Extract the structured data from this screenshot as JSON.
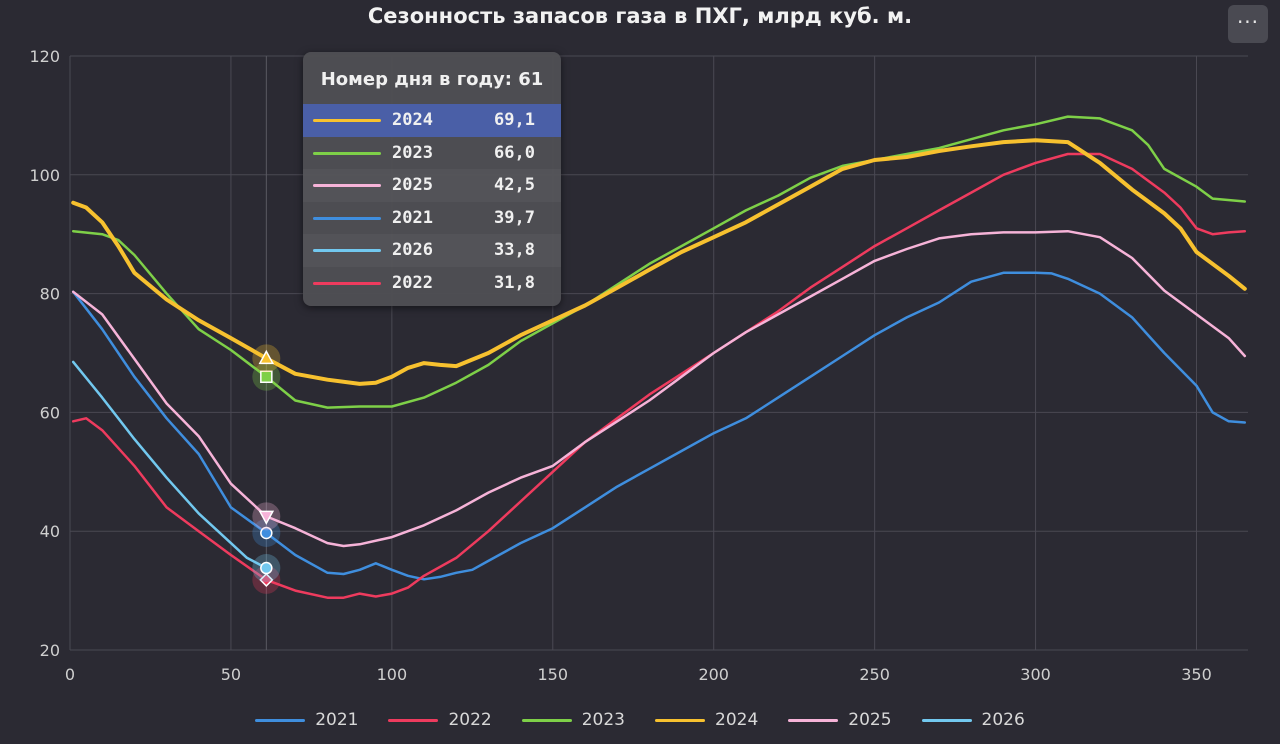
{
  "header": {
    "title": "Сезонность запасов газа в ПХГ, млрд куб. м.",
    "menu_label": "···"
  },
  "tooltip": {
    "title": "Номер дня в году: 61",
    "rows": [
      {
        "year": "2024",
        "value": "69,1",
        "color": "#f7c12f",
        "highlight": true
      },
      {
        "year": "2023",
        "value": "66,0",
        "color": "#7ed048"
      },
      {
        "year": "2025",
        "value": "42,5",
        "color": "#f6b3d8"
      },
      {
        "year": "2021",
        "value": "39,7",
        "color": "#3f8ede"
      },
      {
        "year": "2026",
        "value": "33,8",
        "color": "#72c8ef"
      },
      {
        "year": "2022",
        "value": "31,8",
        "color": "#ee3b5e"
      }
    ]
  },
  "legend": [
    {
      "label": "2021",
      "color": "#3f8ede"
    },
    {
      "label": "2022",
      "color": "#ee3b5e"
    },
    {
      "label": "2023",
      "color": "#7ed048"
    },
    {
      "label": "2024",
      "color": "#f7c12f"
    },
    {
      "label": "2025",
      "color": "#f6b3d8"
    },
    {
      "label": "2026",
      "color": "#72c8ef"
    }
  ],
  "chart_data": {
    "type": "line",
    "title": "Сезонность запасов газа в ПХГ, млрд куб. м.",
    "xlabel": "",
    "ylabel": "",
    "xlim": [
      0,
      366
    ],
    "ylim": [
      20,
      120
    ],
    "x_ticks": [
      0,
      50,
      100,
      150,
      200,
      250,
      300,
      350
    ],
    "y_ticks": [
      20,
      40,
      60,
      80,
      100,
      120
    ],
    "grid": true,
    "legend_position": "bottom",
    "hover_day": 61,
    "series": [
      {
        "name": "2021",
        "color": "#3f8ede",
        "marker": "circle",
        "width": 2.5,
        "points": [
          [
            1,
            80.3
          ],
          [
            10,
            74
          ],
          [
            20,
            66
          ],
          [
            30,
            59
          ],
          [
            40,
            53
          ],
          [
            50,
            44
          ],
          [
            61,
            39.7
          ],
          [
            70,
            36
          ],
          [
            80,
            33
          ],
          [
            85,
            32.8
          ],
          [
            90,
            33.5
          ],
          [
            95,
            34.6
          ],
          [
            100,
            33.5
          ],
          [
            105,
            32.5
          ],
          [
            110,
            31.9
          ],
          [
            115,
            32.3
          ],
          [
            120,
            33
          ],
          [
            125,
            33.5
          ],
          [
            130,
            35
          ],
          [
            140,
            38
          ],
          [
            150,
            40.5
          ],
          [
            160,
            44
          ],
          [
            170,
            47.5
          ],
          [
            180,
            50.5
          ],
          [
            190,
            53.5
          ],
          [
            200,
            56.5
          ],
          [
            210,
            59
          ],
          [
            220,
            62.5
          ],
          [
            230,
            66
          ],
          [
            240,
            69.5
          ],
          [
            250,
            73
          ],
          [
            260,
            76
          ],
          [
            270,
            78.5
          ],
          [
            280,
            82
          ],
          [
            290,
            83.5
          ],
          [
            300,
            83.5
          ],
          [
            305,
            83.4
          ],
          [
            310,
            82.5
          ],
          [
            320,
            80
          ],
          [
            330,
            76
          ],
          [
            340,
            70
          ],
          [
            350,
            64.5
          ],
          [
            355,
            60
          ],
          [
            360,
            58.5
          ],
          [
            365,
            58.3
          ]
        ]
      },
      {
        "name": "2022",
        "color": "#ee3b5e",
        "marker": "diamond",
        "width": 2.5,
        "points": [
          [
            1,
            58.5
          ],
          [
            5,
            59
          ],
          [
            10,
            57
          ],
          [
            20,
            51
          ],
          [
            30,
            44
          ],
          [
            40,
            40
          ],
          [
            50,
            36
          ],
          [
            61,
            31.8
          ],
          [
            70,
            30
          ],
          [
            80,
            28.8
          ],
          [
            85,
            28.8
          ],
          [
            90,
            29.5
          ],
          [
            95,
            29
          ],
          [
            100,
            29.5
          ],
          [
            105,
            30.5
          ],
          [
            110,
            32.5
          ],
          [
            120,
            35.5
          ],
          [
            130,
            40
          ],
          [
            140,
            45
          ],
          [
            150,
            50
          ],
          [
            160,
            55
          ],
          [
            170,
            59
          ],
          [
            180,
            63
          ],
          [
            190,
            66.5
          ],
          [
            200,
            70
          ],
          [
            210,
            73.5
          ],
          [
            220,
            77
          ],
          [
            230,
            81
          ],
          [
            240,
            84.5
          ],
          [
            250,
            88
          ],
          [
            260,
            91
          ],
          [
            270,
            94
          ],
          [
            280,
            97
          ],
          [
            290,
            100
          ],
          [
            300,
            102
          ],
          [
            310,
            103.5
          ],
          [
            320,
            103.5
          ],
          [
            330,
            101
          ],
          [
            340,
            97
          ],
          [
            345,
            94.5
          ],
          [
            350,
            91
          ],
          [
            355,
            90
          ],
          [
            360,
            90.3
          ],
          [
            365,
            90.5
          ]
        ]
      },
      {
        "name": "2023",
        "color": "#7ed048",
        "marker": "square",
        "width": 2.5,
        "points": [
          [
            1,
            90.5
          ],
          [
            10,
            90
          ],
          [
            15,
            89
          ],
          [
            20,
            86.5
          ],
          [
            30,
            80
          ],
          [
            40,
            74
          ],
          [
            50,
            70.5
          ],
          [
            61,
            66
          ],
          [
            70,
            62
          ],
          [
            80,
            60.8
          ],
          [
            90,
            61
          ],
          [
            100,
            61
          ],
          [
            110,
            62.5
          ],
          [
            120,
            65
          ],
          [
            130,
            68
          ],
          [
            140,
            72
          ],
          [
            150,
            75
          ],
          [
            160,
            78
          ],
          [
            170,
            81.5
          ],
          [
            180,
            85
          ],
          [
            190,
            88
          ],
          [
            200,
            91
          ],
          [
            210,
            94
          ],
          [
            220,
            96.5
          ],
          [
            230,
            99.5
          ],
          [
            240,
            101.5
          ],
          [
            250,
            102.5
          ],
          [
            260,
            103.5
          ],
          [
            270,
            104.5
          ],
          [
            280,
            106
          ],
          [
            290,
            107.5
          ],
          [
            300,
            108.5
          ],
          [
            310,
            109.8
          ],
          [
            320,
            109.5
          ],
          [
            330,
            107.5
          ],
          [
            335,
            105
          ],
          [
            340,
            101
          ],
          [
            350,
            98
          ],
          [
            355,
            96
          ],
          [
            365,
            95.5
          ]
        ]
      },
      {
        "name": "2024",
        "color": "#f7c12f",
        "marker": "triangle",
        "width": 4,
        "points": [
          [
            1,
            95.3
          ],
          [
            5,
            94.5
          ],
          [
            10,
            92
          ],
          [
            15,
            88
          ],
          [
            20,
            83.5
          ],
          [
            30,
            79
          ],
          [
            40,
            75.5
          ],
          [
            50,
            72.5
          ],
          [
            61,
            69.1
          ],
          [
            70,
            66.5
          ],
          [
            80,
            65.5
          ],
          [
            90,
            64.8
          ],
          [
            95,
            65
          ],
          [
            100,
            66
          ],
          [
            105,
            67.5
          ],
          [
            110,
            68.3
          ],
          [
            115,
            68
          ],
          [
            120,
            67.8
          ],
          [
            130,
            70
          ],
          [
            140,
            73
          ],
          [
            150,
            75.5
          ],
          [
            160,
            78
          ],
          [
            170,
            81
          ],
          [
            180,
            84
          ],
          [
            190,
            87
          ],
          [
            200,
            89.5
          ],
          [
            210,
            92
          ],
          [
            220,
            95
          ],
          [
            230,
            98
          ],
          [
            240,
            101
          ],
          [
            250,
            102.5
          ],
          [
            260,
            103
          ],
          [
            270,
            104
          ],
          [
            280,
            104.8
          ],
          [
            290,
            105.5
          ],
          [
            300,
            105.8
          ],
          [
            310,
            105.5
          ],
          [
            320,
            102
          ],
          [
            330,
            97.5
          ],
          [
            340,
            93.5
          ],
          [
            345,
            91
          ],
          [
            350,
            87
          ],
          [
            360,
            83
          ],
          [
            365,
            80.8
          ]
        ]
      },
      {
        "name": "2025",
        "color": "#f6b3d8",
        "marker": "triangle-down",
        "width": 2.5,
        "points": [
          [
            1,
            80.3
          ],
          [
            10,
            76.5
          ],
          [
            20,
            69
          ],
          [
            30,
            61.5
          ],
          [
            40,
            56
          ],
          [
            50,
            48
          ],
          [
            61,
            42.5
          ],
          [
            70,
            40.5
          ],
          [
            80,
            38
          ],
          [
            85,
            37.5
          ],
          [
            90,
            37.8
          ],
          [
            100,
            39
          ],
          [
            110,
            41
          ],
          [
            120,
            43.5
          ],
          [
            130,
            46.5
          ],
          [
            140,
            49
          ],
          [
            150,
            51
          ],
          [
            160,
            55
          ],
          [
            170,
            58.5
          ],
          [
            180,
            62
          ],
          [
            190,
            66
          ],
          [
            200,
            70
          ],
          [
            210,
            73.5
          ],
          [
            220,
            76.5
          ],
          [
            230,
            79.5
          ],
          [
            240,
            82.5
          ],
          [
            250,
            85.5
          ],
          [
            260,
            87.5
          ],
          [
            270,
            89.3
          ],
          [
            280,
            90
          ],
          [
            290,
            90.3
          ],
          [
            300,
            90.3
          ],
          [
            310,
            90.5
          ],
          [
            320,
            89.5
          ],
          [
            330,
            86
          ],
          [
            340,
            80.5
          ],
          [
            350,
            76.5
          ],
          [
            355,
            74.5
          ],
          [
            360,
            72.5
          ],
          [
            365,
            69.5
          ]
        ]
      },
      {
        "name": "2026",
        "color": "#72c8ef",
        "marker": "circle",
        "width": 2.5,
        "points": [
          [
            1,
            68.5
          ],
          [
            10,
            62.5
          ],
          [
            20,
            55.5
          ],
          [
            30,
            49
          ],
          [
            40,
            43
          ],
          [
            50,
            38
          ],
          [
            55,
            35.5
          ],
          [
            61,
            33.8
          ]
        ]
      }
    ]
  }
}
